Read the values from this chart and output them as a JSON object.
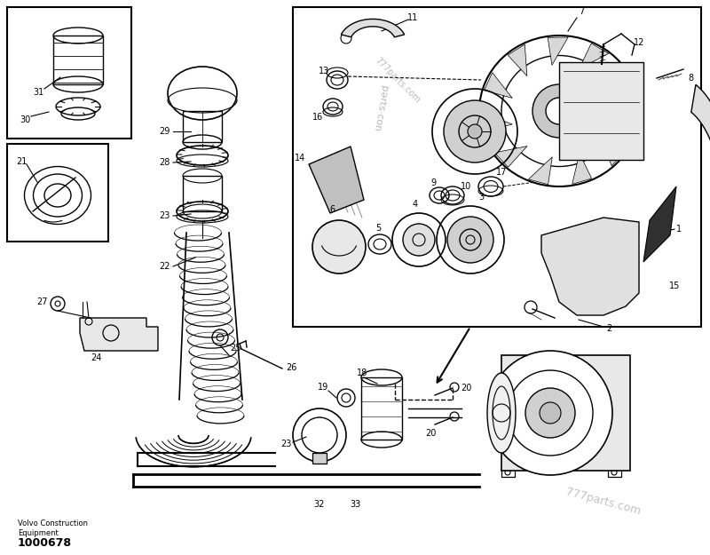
{
  "background_color": "#ffffff",
  "line_color": "#000000",
  "footer_company": "Volvo Construction\nEquipment",
  "footer_number": "1000678",
  "watermark_detail": "777parts.com",
  "watermark_main": "777parts.com",
  "watermark_bottom": "777parts.com"
}
